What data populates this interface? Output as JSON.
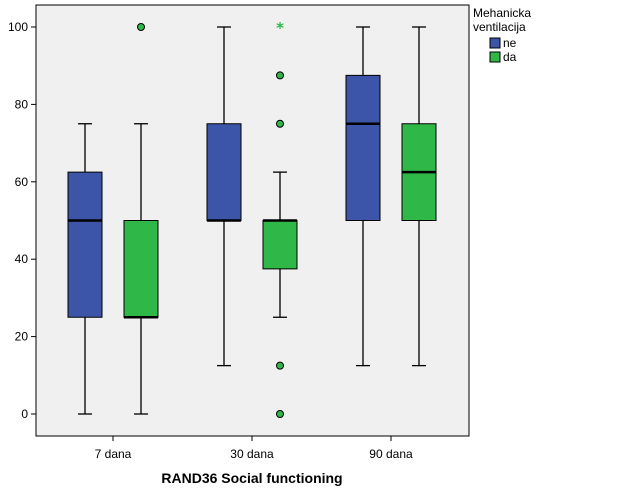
{
  "chart_data": {
    "type": "boxplot",
    "title": "",
    "xlabel": "RAND36 Social functioning",
    "ylabel": "",
    "ylim": [
      -6,
      106
    ],
    "yticks": [
      0,
      20,
      40,
      60,
      80,
      100
    ],
    "categories": [
      "7 dana",
      "30 dana",
      "90 dana"
    ],
    "grid": false,
    "legend": {
      "title": "Mehanicka ventilacija",
      "placement": "top-right"
    },
    "series": [
      {
        "name": "ne",
        "color": "#3d55a8",
        "boxes": [
          {
            "category": "7 dana",
            "min": 0,
            "q1": 25,
            "median": 50,
            "q3": 62.5,
            "max": 75,
            "outliers": [],
            "extremes": []
          },
          {
            "category": "30 dana",
            "min": 12.5,
            "q1": 50,
            "median": 50,
            "q3": 75,
            "max": 100,
            "outliers": [],
            "extremes": []
          },
          {
            "category": "90 dana",
            "min": 12.5,
            "q1": 50,
            "median": 75,
            "q3": 87.5,
            "max": 100,
            "outliers": [],
            "extremes": []
          }
        ]
      },
      {
        "name": "da",
        "color": "#2fb747",
        "boxes": [
          {
            "category": "7 dana",
            "min": 0,
            "q1": 25,
            "median": 25,
            "q3": 50,
            "max": 75,
            "outliers": [
              100
            ],
            "extremes": []
          },
          {
            "category": "30 dana",
            "min": 25,
            "q1": 37.5,
            "median": 50,
            "q3": 50,
            "max": 62.5,
            "outliers": [
              87.5,
              75,
              12.5,
              0
            ],
            "extremes": [
              100
            ]
          },
          {
            "category": "90 dana",
            "min": 12.5,
            "q1": 50,
            "median": 62.5,
            "q3": 75,
            "max": 100,
            "outliers": [],
            "extremes": []
          }
        ]
      }
    ]
  },
  "colors": {
    "plot_background": "#f0f0f0",
    "axis": "#000000"
  }
}
